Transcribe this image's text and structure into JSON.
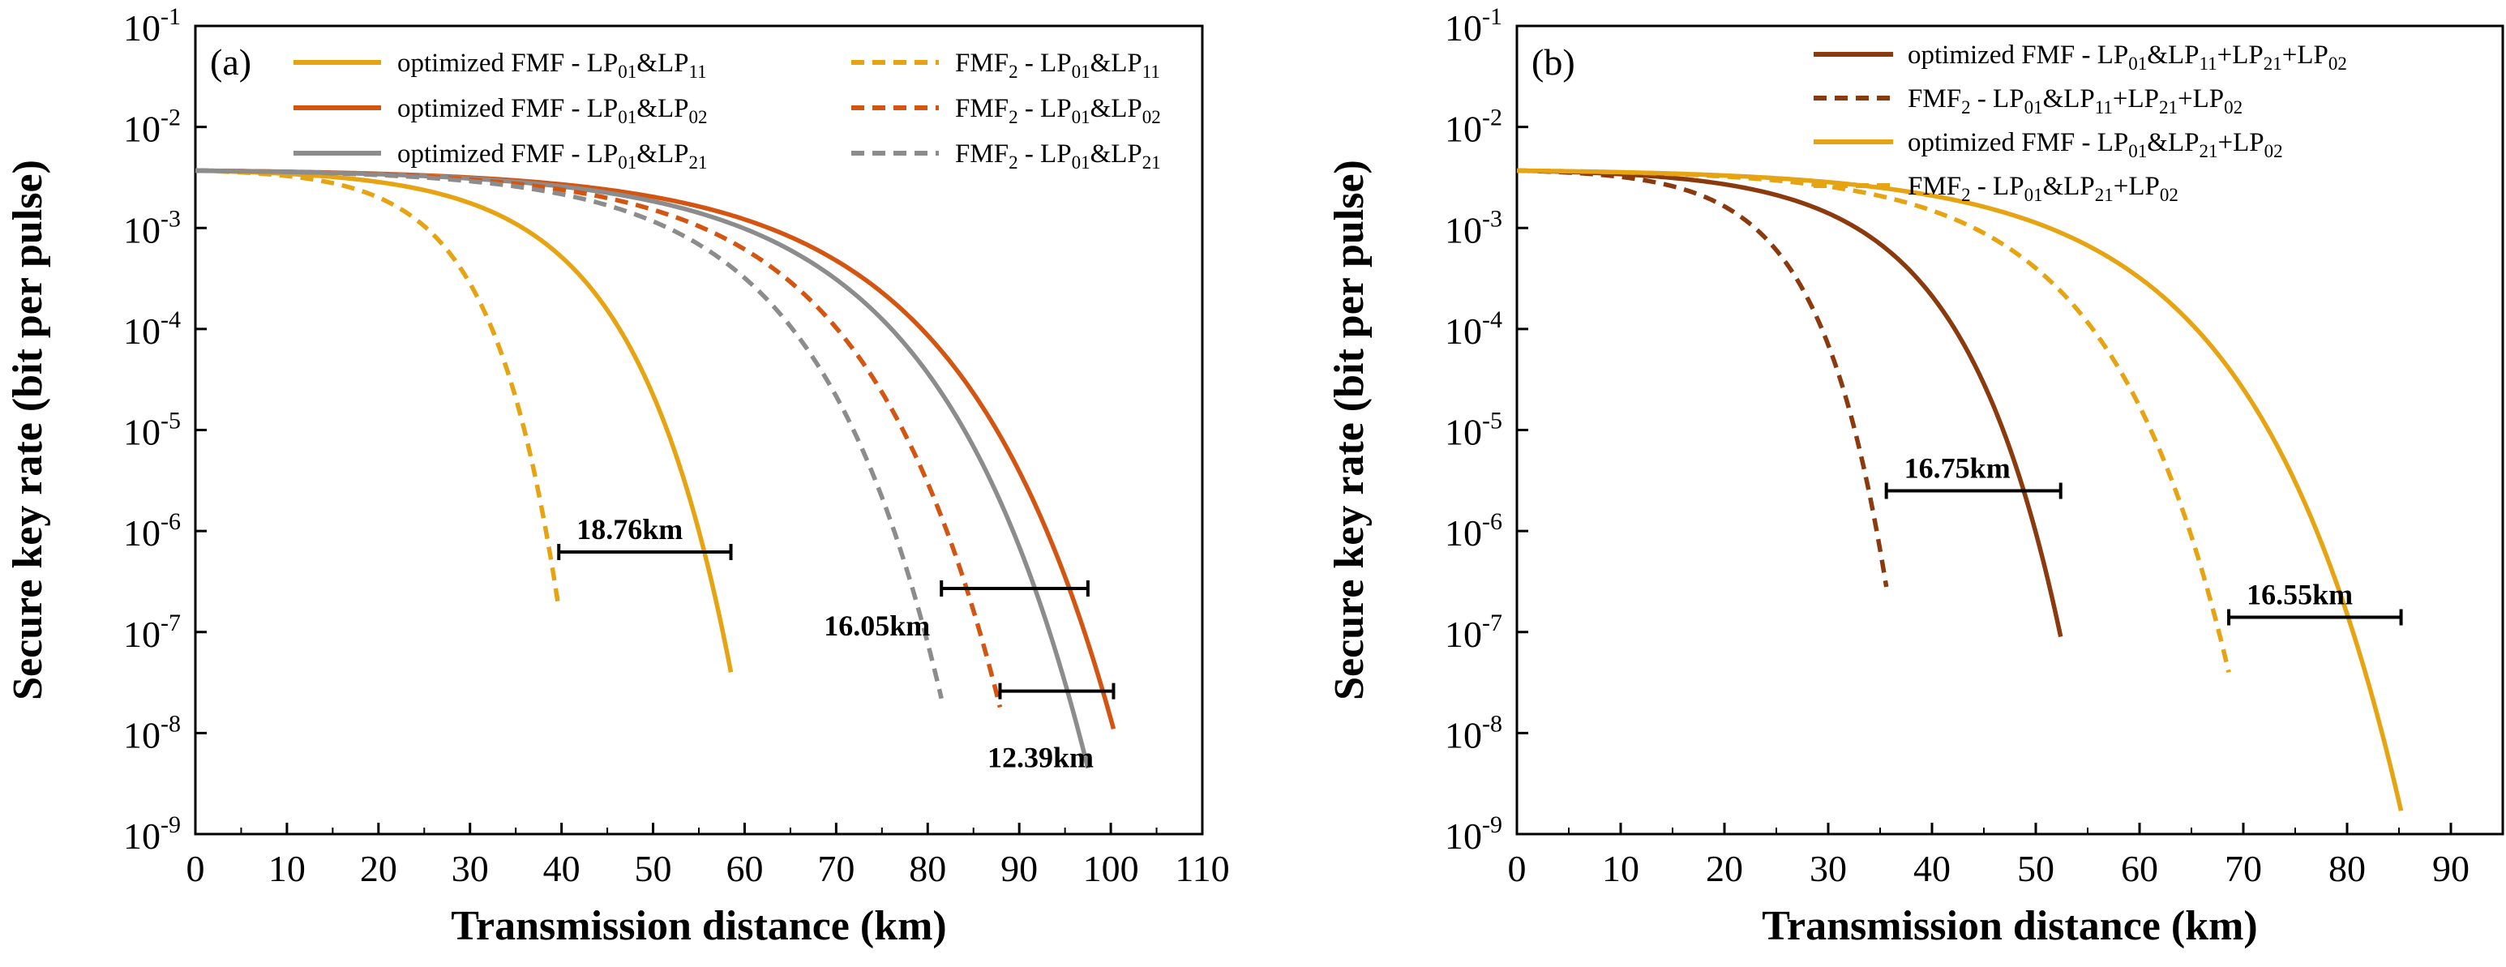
{
  "chart_data": [
    {
      "type": "line",
      "panel_label": "(a)",
      "xlabel": "Transmission distance (km)",
      "ylabel": "Secure key rate (bit per pulse)",
      "xlim": [
        0,
        110
      ],
      "ylim_log10": [
        -9,
        -1
      ],
      "x_ticks": [
        0,
        10,
        20,
        30,
        40,
        50,
        60,
        70,
        80,
        90,
        100,
        110
      ],
      "y_ticks_exponent": [
        -9,
        -8,
        -7,
        -6,
        -5,
        -4,
        -3,
        -2,
        -1
      ],
      "y_tick_base": "10",
      "legend_position": "top",
      "series": [
        {
          "name": "optimized FMF - LP01&LP11",
          "legend": {
            "pre": "optimized FMF - LP",
            "segs": [
              [
                "s",
                "01"
              ],
              [
                "n",
                "&LP"
              ],
              [
                "s",
                "11"
              ]
            ]
          },
          "color": "#E6A312",
          "dash": false,
          "x0": 0.0,
          "y0": 0.0037,
          "x_end": 58.5,
          "y_end": 4e-08,
          "k_shape": 5.5
        },
        {
          "name": "optimized FMF - LP01&LP02",
          "legend": {
            "pre": "optimized FMF - LP",
            "segs": [
              [
                "s",
                "01"
              ],
              [
                "n",
                "&LP"
              ],
              [
                "s",
                "02"
              ]
            ]
          },
          "color": "#D45512",
          "dash": false,
          "x0": 0.0,
          "y0": 0.0037,
          "x_end": 100.3,
          "y_end": 1.1e-08,
          "k_shape": 6.0
        },
        {
          "name": "optimized FMF - LP01&LP21",
          "legend": {
            "pre": "optimized FMF - LP",
            "segs": [
              [
                "s",
                "01"
              ],
              [
                "n",
                "&LP"
              ],
              [
                "s",
                "21"
              ]
            ]
          },
          "color": "#8C8C8C",
          "dash": false,
          "x0": 0.0,
          "y0": 0.0037,
          "x_end": 97.5,
          "y_end": 4.5e-09,
          "k_shape": 6.0
        },
        {
          "name": "FMF2 - LP01&LP11",
          "legend": {
            "pre": "FMF",
            "segs": [
              [
                "s",
                "2"
              ],
              [
                "n",
                " - LP"
              ],
              [
                "s",
                "01"
              ],
              [
                "n",
                "&LP"
              ],
              [
                "s",
                "11"
              ]
            ]
          },
          "color": "#E6A312",
          "dash": true,
          "x0": 0.0,
          "y0": 0.0037,
          "x_end": 39.7,
          "y_end": 1.7e-07,
          "k_shape": 5.5
        },
        {
          "name": "FMF2 - LP01&LP02",
          "legend": {
            "pre": "FMF",
            "segs": [
              [
                "s",
                "2"
              ],
              [
                "n",
                " - LP"
              ],
              [
                "s",
                "01"
              ],
              [
                "n",
                "&LP"
              ],
              [
                "s",
                "02"
              ]
            ]
          },
          "color": "#D45512",
          "dash": true,
          "x0": 0.0,
          "y0": 0.0037,
          "x_end": 87.9,
          "y_end": 1.8e-08,
          "k_shape": 6.0
        },
        {
          "name": "FMF2 - LP01&LP21",
          "legend": {
            "pre": "FMF",
            "segs": [
              [
                "s",
                "2"
              ],
              [
                "n",
                " - LP"
              ],
              [
                "s",
                "01"
              ],
              [
                "n",
                "&LP"
              ],
              [
                "s",
                "21"
              ]
            ]
          },
          "color": "#8C8C8C",
          "dash": true,
          "x0": 0.0,
          "y0": 0.0037,
          "x_end": 81.5,
          "y_end": 2.2e-08,
          "k_shape": 6.0
        }
      ],
      "annotations": [
        {
          "text": "18.76km",
          "x_from": 39.7,
          "x_to": 58.5,
          "y": 6.2e-07,
          "label_anchor": "above"
        },
        {
          "text": "16.05km",
          "x_from": 81.5,
          "x_to": 97.5,
          "y": 2.7e-07,
          "label_anchor": "below-left"
        },
        {
          "text": "12.39km",
          "x_from": 87.9,
          "x_to": 100.3,
          "y": 2.6e-08,
          "label_anchor": "below"
        }
      ]
    },
    {
      "type": "line",
      "panel_label": "(b)",
      "xlabel": "Transmission distance (km)",
      "ylabel": "Secure key rate (bit per pulse)",
      "xlim": [
        0,
        95
      ],
      "ylim_log10": [
        -9,
        -1
      ],
      "x_ticks": [
        0,
        10,
        20,
        30,
        40,
        50,
        60,
        70,
        80,
        90
      ],
      "y_ticks_exponent": [
        -9,
        -8,
        -7,
        -6,
        -5,
        -4,
        -3,
        -2,
        -1
      ],
      "y_tick_base": "10",
      "legend_position": "top-right",
      "series": [
        {
          "name": "optimized FMF - LP01&LP11+LP21+LP02",
          "legend": {
            "pre": "optimized FMF - LP",
            "segs": [
              [
                "s",
                "01"
              ],
              [
                "n",
                "&LP"
              ],
              [
                "s",
                "11"
              ],
              [
                "n",
                "+LP"
              ],
              [
                "s",
                "21"
              ],
              [
                "n",
                "+LP"
              ],
              [
                "s",
                "02"
              ]
            ]
          },
          "color": "#8B3A0E",
          "dash": false,
          "x0": 0.0,
          "y0": 0.0037,
          "x_end": 52.4,
          "y_end": 9e-08,
          "k_shape": 5.5
        },
        {
          "name": "FMF2 - LP01&LP11+LP21+LP02",
          "legend": {
            "pre": "FMF",
            "segs": [
              [
                "s",
                "2"
              ],
              [
                "n",
                " - LP"
              ],
              [
                "s",
                "01"
              ],
              [
                "n",
                "&LP"
              ],
              [
                "s",
                "11"
              ],
              [
                "n",
                "+LP"
              ],
              [
                "s",
                "21"
              ],
              [
                "n",
                "+LP"
              ],
              [
                "s",
                "02"
              ]
            ]
          },
          "color": "#8B3A0E",
          "dash": true,
          "x0": 0.0,
          "y0": 0.0037,
          "x_end": 35.6,
          "y_end": 2.8e-07,
          "k_shape": 5.5
        },
        {
          "name": "optimized FMF - LP01&LP21+LP02",
          "legend": {
            "pre": "optimized FMF - LP",
            "segs": [
              [
                "s",
                "01"
              ],
              [
                "n",
                "&LP"
              ],
              [
                "s",
                "21"
              ],
              [
                "n",
                "+LP"
              ],
              [
                "s",
                "02"
              ]
            ]
          },
          "color": "#E6A312",
          "dash": false,
          "x0": 0.0,
          "y0": 0.0037,
          "x_end": 85.2,
          "y_end": 1.7e-09,
          "k_shape": 6.0
        },
        {
          "name": "FMF2 - LP01&LP21+LP02",
          "legend": {
            "pre": "FMF",
            "segs": [
              [
                "s",
                "2"
              ],
              [
                "n",
                " - LP"
              ],
              [
                "s",
                "01"
              ],
              [
                "n",
                "&LP"
              ],
              [
                "s",
                "21"
              ],
              [
                "n",
                "+LP"
              ],
              [
                "s",
                "02"
              ]
            ]
          },
          "color": "#E6A312",
          "dash": true,
          "x0": 0.0,
          "y0": 0.0037,
          "x_end": 68.6,
          "y_end": 4e-08,
          "k_shape": 6.0
        }
      ],
      "annotations": [
        {
          "text": "16.75km",
          "x_from": 35.6,
          "x_to": 52.4,
          "y": 2.5e-06,
          "label_anchor": "above"
        },
        {
          "text": "16.55km",
          "x_from": 68.6,
          "x_to": 85.2,
          "y": 1.4e-07,
          "label_anchor": "above"
        }
      ]
    }
  ]
}
